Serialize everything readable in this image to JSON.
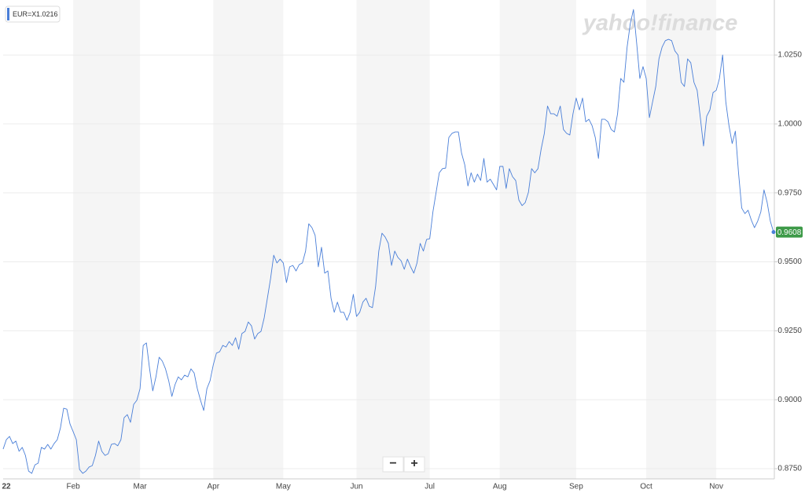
{
  "chart_data": {
    "type": "line",
    "watermark": "yahoo!finance",
    "legend_value": 1.0216,
    "zoom_buttons": [
      "−",
      "+"
    ],
    "ylim": [
      0.8713,
      1.0441
    ],
    "yticks": [
      {
        "value": 0.875,
        "label": "0.8750"
      },
      {
        "value": 0.9,
        "label": "0.9000"
      },
      {
        "value": 0.925,
        "label": "0.9250"
      },
      {
        "value": 0.95,
        "label": "0.9500"
      },
      {
        "value": 0.975,
        "label": "0.9750"
      },
      {
        "value": 1,
        "label": "1.0000"
      },
      {
        "value": 1.025,
        "label": "1.0250"
      }
    ],
    "grid": true,
    "categories": [
      null,
      "22",
      null,
      null,
      null,
      null,
      null,
      null,
      null,
      null,
      null,
      null,
      null,
      null,
      null,
      null,
      null,
      null,
      null,
      null,
      null,
      null,
      "Feb",
      null,
      null,
      null,
      null,
      null,
      null,
      null,
      null,
      null,
      null,
      null,
      null,
      null,
      null,
      null,
      null,
      null,
      null,
      null,
      null,
      "Mar",
      null,
      null,
      null,
      null,
      null,
      null,
      null,
      null,
      null,
      null,
      null,
      null,
      null,
      null,
      null,
      null,
      null,
      null,
      null,
      null,
      null,
      null,
      "Apr",
      null,
      null,
      null,
      null,
      null,
      null,
      null,
      null,
      null,
      null,
      null,
      null,
      null,
      null,
      null,
      null,
      null,
      null,
      null,
      null,
      null,
      "May",
      null,
      null,
      null,
      null,
      null,
      null,
      null,
      null,
      null,
      null,
      null,
      null,
      null,
      null,
      null,
      null,
      null,
      null,
      null,
      null,
      null,
      null,
      "Jun",
      null,
      null,
      null,
      null,
      null,
      null,
      null,
      null,
      null,
      null,
      null,
      null,
      null,
      null,
      null,
      null,
      null,
      null,
      null,
      null,
      null,
      null,
      "Jul",
      null,
      null,
      null,
      null,
      null,
      null,
      null,
      null,
      null,
      null,
      null,
      null,
      null,
      null,
      null,
      null,
      null,
      null,
      null,
      null,
      null,
      "Aug",
      null,
      null,
      null,
      null,
      null,
      null,
      null,
      null,
      null,
      null,
      null,
      null,
      null,
      null,
      null,
      null,
      null,
      null,
      null,
      null,
      null,
      null,
      null,
      "Sep",
      null,
      null,
      null,
      null,
      null,
      null,
      null,
      null,
      null,
      null,
      null,
      null,
      null,
      null,
      null,
      null,
      null,
      null,
      null,
      null,
      null,
      "Oct",
      null,
      null,
      null,
      null,
      null,
      null,
      null,
      null,
      null,
      null,
      null,
      null,
      null,
      null,
      null,
      null,
      null,
      null,
      null,
      null,
      null,
      "Nov",
      null,
      null,
      null,
      null,
      null,
      null,
      null,
      null,
      null,
      null,
      null,
      null,
      null,
      null,
      null,
      null,
      null,
      null
    ],
    "series": [
      {
        "name": "EUR=X",
        "color": "#4a7fd8",
        "values": [
          0.8821,
          0.8855,
          0.8867,
          0.8841,
          0.885,
          0.8813,
          0.8827,
          0.8798,
          0.8741,
          0.8733,
          0.8764,
          0.877,
          0.8827,
          0.8821,
          0.8838,
          0.8821,
          0.8841,
          0.8855,
          0.8898,
          0.8969,
          0.8966,
          0.8912,
          0.8884,
          0.8855,
          0.8747,
          0.8733,
          0.8741,
          0.8756,
          0.8761,
          0.8798,
          0.885,
          0.8813,
          0.8798,
          0.8804,
          0.8838,
          0.8841,
          0.8833,
          0.8855,
          0.8935,
          0.8946,
          0.8918,
          0.8983,
          0.8998,
          0.904,
          0.9197,
          0.9206,
          0.9112,
          0.9032,
          0.9083,
          0.9154,
          0.914,
          0.9112,
          0.9069,
          0.9012,
          0.9055,
          0.9083,
          0.9072,
          0.9089,
          0.9083,
          0.9112,
          0.9097,
          0.904,
          0.8998,
          0.8961,
          0.904,
          0.9069,
          0.9126,
          0.9169,
          0.9174,
          0.9197,
          0.9191,
          0.9211,
          0.9197,
          0.9225,
          0.9183,
          0.924,
          0.9248,
          0.9282,
          0.9268,
          0.922,
          0.924,
          0.9248,
          0.9297,
          0.9368,
          0.9439,
          0.9524,
          0.9496,
          0.951,
          0.9496,
          0.9425,
          0.9482,
          0.9487,
          0.9467,
          0.949,
          0.9496,
          0.9539,
          0.9638,
          0.9624,
          0.9596,
          0.9482,
          0.9553,
          0.9459,
          0.9467,
          0.9368,
          0.9317,
          0.9354,
          0.9317,
          0.9317,
          0.9288,
          0.9317,
          0.9382,
          0.9302,
          0.9317,
          0.9354,
          0.9368,
          0.9339,
          0.9334,
          0.9411,
          0.9539,
          0.9604,
          0.959,
          0.9567,
          0.9487,
          0.9539,
          0.9516,
          0.9504,
          0.9473,
          0.951,
          0.9482,
          0.9459,
          0.9496,
          0.9567,
          0.9539,
          0.9581,
          0.9584,
          0.9681,
          0.9752,
          0.9823,
          0.9838,
          0.984,
          0.9951,
          0.9966,
          0.9971,
          0.9971,
          0.9894,
          0.9852,
          0.9775,
          0.9823,
          0.9789,
          0.9818,
          0.9795,
          0.9875,
          0.9789,
          0.98,
          0.9781,
          0.9761,
          0.9846,
          0.9846,
          0.9766,
          0.9838,
          0.9809,
          0.9795,
          0.9724,
          0.9704,
          0.9715,
          0.9752,
          0.9838,
          0.9823,
          0.9838,
          0.9909,
          0.9966,
          1.0065,
          1.0037,
          1.0037,
          1.0028,
          1.0065,
          0.998,
          0.9966,
          0.996,
          1.0037,
          1.0094,
          1.0051,
          1.0094,
          1.0008,
          1.0017,
          0.9994,
          0.9951,
          0.9875,
          1.0017,
          1.0017,
          1.0008,
          0.998,
          0.9971,
          1.0037,
          1.0165,
          1.0151,
          1.0279,
          1.0364,
          1.0415,
          1.0293,
          1.0165,
          1.0208,
          1.0165,
          1.0023,
          1.008,
          1.0136,
          1.0236,
          1.0279,
          1.0302,
          1.0307,
          1.0302,
          1.0265,
          1.025,
          1.0151,
          1.0136,
          1.0236,
          1.0222,
          1.0151,
          1.0122,
          1.0023,
          0.992,
          1.0028,
          1.0051,
          1.0114,
          1.0122,
          1.0165,
          1.025,
          1.008,
          0.9994,
          0.9929,
          0.9974,
          0.9823,
          0.9695,
          0.9675,
          0.9687,
          0.9652,
          0.9624,
          0.9647,
          0.9681,
          0.9761,
          0.9715,
          0.9647,
          0.9608
        ]
      }
    ]
  }
}
